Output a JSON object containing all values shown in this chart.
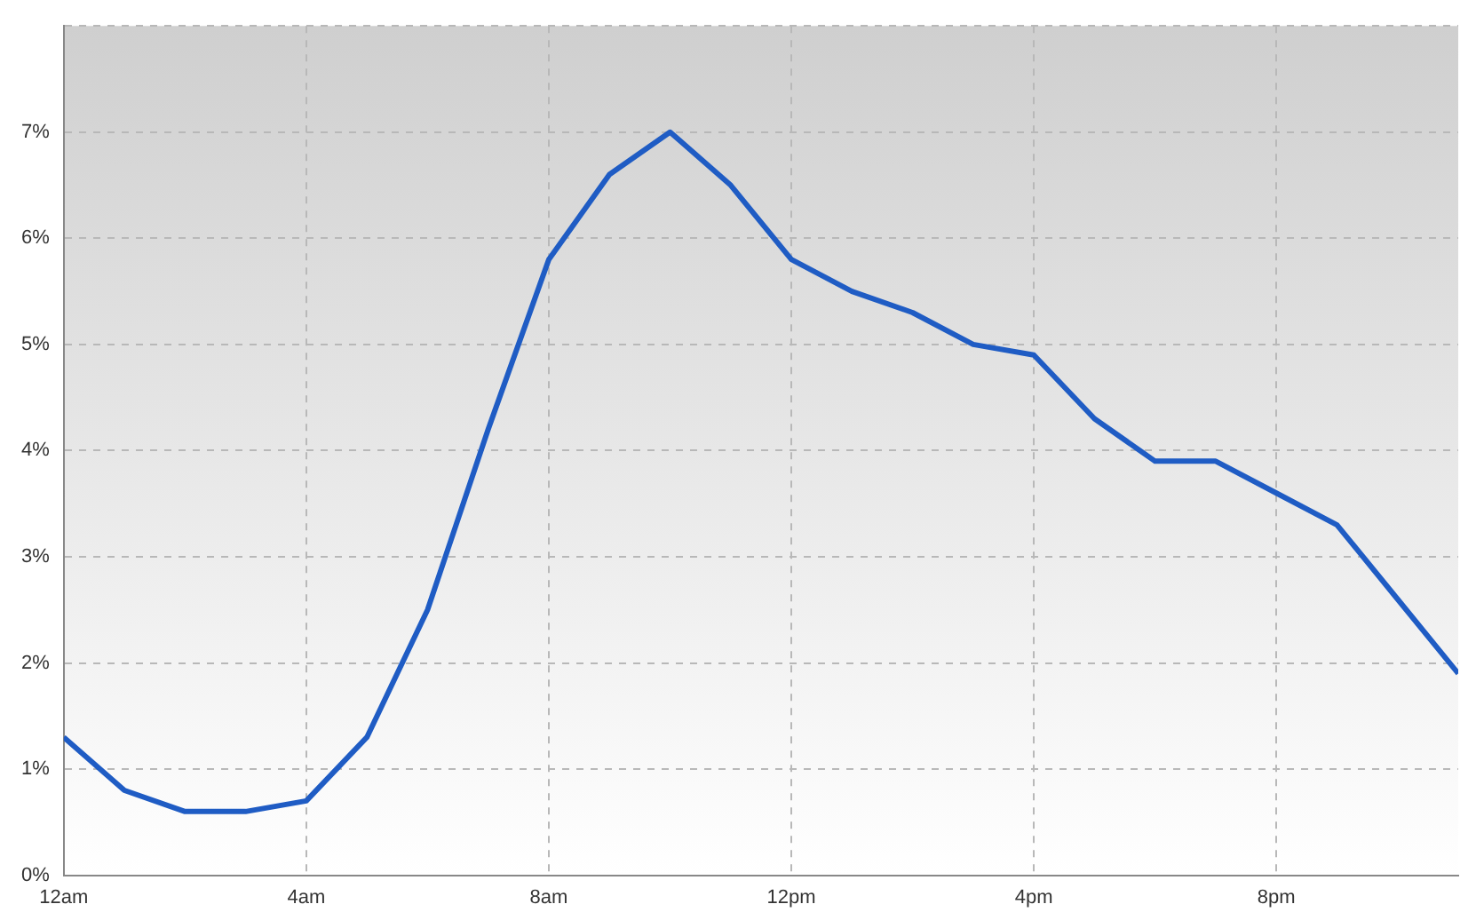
{
  "chart_data": {
    "type": "line",
    "categories": [
      "12am",
      null,
      null,
      null,
      "4am",
      null,
      null,
      null,
      "8am",
      null,
      null,
      null,
      "12pm",
      null,
      null,
      null,
      "4pm",
      null,
      null,
      null,
      "8pm",
      null,
      null,
      null
    ],
    "series": [
      {
        "color": "#1f5cc4",
        "values": [
          1.3,
          0.8,
          0.6,
          0.6,
          0.7,
          1.3,
          2.5,
          4.2,
          5.8,
          6.6,
          7.0,
          6.5,
          5.8,
          5.5,
          5.3,
          5.0,
          4.9,
          4.3,
          3.9,
          3.9,
          3.6,
          3.3,
          2.6,
          1.9
        ]
      }
    ],
    "ylim": [
      0,
      8
    ],
    "yticks": [
      {
        "value": 0,
        "label": "0%"
      },
      {
        "value": 1,
        "label": "1%"
      },
      {
        "value": 2,
        "label": "2%"
      },
      {
        "value": 3,
        "label": "3%"
      },
      {
        "value": 4,
        "label": "4%"
      },
      {
        "value": 5,
        "label": "5%"
      },
      {
        "value": 6,
        "label": "6%"
      },
      {
        "value": 7,
        "label": "7%"
      },
      {
        "value": 8,
        "label": null
      }
    ],
    "grid": true,
    "legend": false,
    "marker": "none",
    "line_style": "solid"
  }
}
